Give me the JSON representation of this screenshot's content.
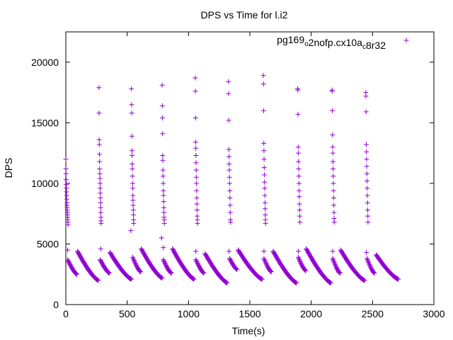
{
  "chart_data": {
    "type": "scatter",
    "title": "DPS vs Time for l.i2",
    "xlabel": "Time(s)",
    "ylabel": "DPS",
    "xlim": [
      0,
      3000
    ],
    "ylim": [
      0,
      22500
    ],
    "xticks": [
      0,
      500,
      1000,
      1500,
      2000,
      2500,
      3000
    ],
    "yticks": [
      0,
      5000,
      10000,
      15000,
      20000
    ],
    "legend_position": "top-right",
    "grid": false,
    "series": [
      {
        "name": "pg169_o2nofp.cx10a_c8r32",
        "color": "#9400d3",
        "marker": "plus",
        "spikes": [
          {
            "t": 0,
            "values": [
              12000,
              11200,
              10800,
              10300,
              9900,
              9600,
              9300,
              9000,
              8700,
              8400,
              8200,
              8000,
              7800,
              7600,
              7400,
              7200,
              7000,
              6800,
              6600
            ]
          },
          {
            "t": 270,
            "values": [
              17900,
              15800,
              13600,
              13200,
              12400,
              11800,
              11200,
              10800,
              10400,
              10000,
              9600,
              9200,
              8800,
              8400,
              8000,
              7600,
              7200,
              6900,
              6700
            ]
          },
          {
            "t": 535,
            "values": [
              17800,
              16500,
              15800,
              13900,
              12700,
              12300,
              11600,
              11200,
              10600,
              10000,
              9600,
              9000,
              8600,
              8200,
              7800,
              7400,
              7000,
              6700
            ]
          },
          {
            "t": 785,
            "values": [
              18100,
              16400,
              15400,
              14100,
              12300,
              11900,
              11100,
              10600,
              10000,
              9400,
              9000,
              8500,
              8000,
              7600,
              7200,
              7000,
              6700
            ]
          },
          {
            "t": 1055,
            "values": [
              18700,
              17600,
              15400,
              13400,
              12900,
              12300,
              11700,
              11100,
              10500,
              10000,
              9400,
              8800,
              8300,
              7800,
              7300,
              7000,
              6700
            ]
          },
          {
            "t": 1325,
            "values": [
              18400,
              17400,
              15200,
              12800,
              12200,
              11600,
              11100,
              10500,
              10000,
              9400,
              8800,
              8200,
              7600,
              7000,
              6800
            ]
          },
          {
            "t": 1610,
            "values": [
              18900,
              18200,
              16000,
              13300,
              12700,
              12000,
              11300,
              10700,
              10100,
              9600,
              9000,
              8400,
              7900,
              7400,
              7000,
              6700
            ]
          },
          {
            "t": 1890,
            "values": [
              17800,
              17700,
              15700,
              13000,
              12500,
              11800,
              11200,
              10600,
              10000,
              9400,
              8900,
              8300,
              7800,
              7300,
              6800
            ]
          },
          {
            "t": 2170,
            "values": [
              17700,
              17600,
              16000,
              14000,
              13000,
              12500,
              11800,
              11200,
              10600,
              10000,
              9400,
              8800,
              8200,
              7600,
              7100,
              6800
            ]
          },
          {
            "t": 2445,
            "values": [
              17500,
              17200,
              15900,
              13200,
              12600,
              12000,
              11400,
              10800,
              10200,
              9600,
              9000,
              8400,
              7800,
              7300,
              6800
            ]
          }
        ],
        "decays": [
          {
            "t_start": 15,
            "t_end": 90,
            "v_start": 3700,
            "v_end": 2500
          },
          {
            "t_start": 95,
            "t_end": 265,
            "v_start": 4400,
            "v_end": 2000
          },
          {
            "t_start": 280,
            "t_end": 355,
            "v_start": 3700,
            "v_end": 2600
          },
          {
            "t_start": 360,
            "t_end": 535,
            "v_start": 4300,
            "v_end": 2100
          },
          {
            "t_start": 545,
            "t_end": 610,
            "v_start": 3900,
            "v_end": 2700
          },
          {
            "t_start": 615,
            "t_end": 785,
            "v_start": 4600,
            "v_end": 2200
          },
          {
            "t_start": 795,
            "t_end": 860,
            "v_start": 3700,
            "v_end": 2600
          },
          {
            "t_start": 870,
            "t_end": 1045,
            "v_start": 4600,
            "v_end": 2100
          },
          {
            "t_start": 1060,
            "t_end": 1125,
            "v_start": 3700,
            "v_end": 2600
          },
          {
            "t_start": 1135,
            "t_end": 1315,
            "v_start": 4200,
            "v_end": 1800
          },
          {
            "t_start": 1335,
            "t_end": 1395,
            "v_start": 3800,
            "v_end": 2900
          },
          {
            "t_start": 1405,
            "t_end": 1600,
            "v_start": 4500,
            "v_end": 2100
          },
          {
            "t_start": 1615,
            "t_end": 1675,
            "v_start": 3800,
            "v_end": 2700
          },
          {
            "t_start": 1690,
            "t_end": 1880,
            "v_start": 4400,
            "v_end": 1800
          },
          {
            "t_start": 1895,
            "t_end": 1955,
            "v_start": 3900,
            "v_end": 2800
          },
          {
            "t_start": 1960,
            "t_end": 2160,
            "v_start": 4600,
            "v_end": 1800
          },
          {
            "t_start": 2175,
            "t_end": 2235,
            "v_start": 3800,
            "v_end": 2600
          },
          {
            "t_start": 2240,
            "t_end": 2435,
            "v_start": 4500,
            "v_end": 2000
          },
          {
            "t_start": 2455,
            "t_end": 2515,
            "v_start": 3800,
            "v_end": 2600
          },
          {
            "t_start": 2530,
            "t_end": 2710,
            "v_start": 4100,
            "v_end": 2100
          }
        ],
        "outliers": [
          {
            "x": 15,
            "y": 4500
          },
          {
            "x": 285,
            "y": 4600
          },
          {
            "x": 530,
            "y": 6100
          },
          {
            "x": 780,
            "y": 5500
          },
          {
            "x": 795,
            "y": 4700
          },
          {
            "x": 1060,
            "y": 4400
          },
          {
            "x": 1330,
            "y": 4400
          },
          {
            "x": 1615,
            "y": 4400
          },
          {
            "x": 1895,
            "y": 4400
          },
          {
            "x": 2175,
            "y": 4400
          },
          {
            "x": 2450,
            "y": 4300
          }
        ]
      }
    ]
  }
}
